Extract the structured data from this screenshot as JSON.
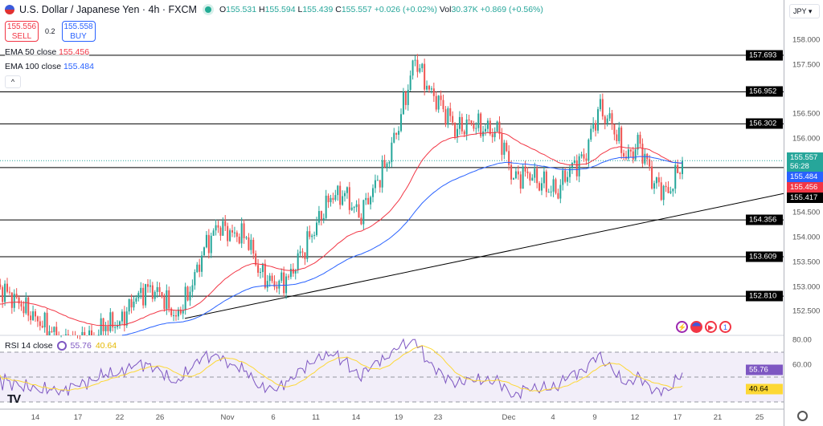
{
  "header": {
    "title": "U.S. Dollar / Japanese Yen · 4h · FXCM",
    "open": "155.531",
    "high": "155.594",
    "low": "155.439",
    "close": "155.557",
    "change": "+0.026 (+0.02%)",
    "volume": "30.37K",
    "vol_change": "+0.869 (+0.56%)",
    "o_label": "O",
    "h_label": "H",
    "l_label": "L",
    "c_label": "C",
    "vol_label": "Vol"
  },
  "trade": {
    "sell_price": "155.556",
    "sell_label": "SELL",
    "spread": "0.2",
    "buy_price": "155.558",
    "buy_label": "BUY"
  },
  "legend": {
    "ema50_label": "EMA 50 close",
    "ema50_value": "155.456",
    "ema100_label": "EMA 100 close",
    "ema100_value": "155.484",
    "rsi_label": "RSI 14 close",
    "rsi_value": "55.76",
    "rsi_ma_value": "40.64"
  },
  "currency": "JPY",
  "colors": {
    "up": "#26a69a",
    "down": "#ef5350",
    "ema50": "#f23645",
    "ema100": "#2962ff",
    "rsi": "#7e57c2",
    "rsi_ma": "#fdd835",
    "level": "#000000"
  },
  "chart_data": [
    {
      "type": "candlestick",
      "interval": "4h",
      "ylim": [
        152.15,
        158.8
      ],
      "y_ticks": [
        "158.000",
        "157.500",
        "156.500",
        "156.000",
        "154.500",
        "154.000",
        "153.500",
        "153.000",
        "152.500"
      ],
      "x_ticks": [
        "14",
        "17",
        "22",
        "26",
        "Nov",
        "6",
        "11",
        "14",
        "19",
        "23",
        "Dec",
        "4",
        "9",
        "12",
        "17",
        "21",
        "25"
      ],
      "daily_closes": [
        152.9,
        152.6,
        152.4,
        152.1,
        151.9,
        151.9,
        152.0,
        152.2,
        152.3,
        152.7,
        153.0,
        152.8,
        152.4,
        152.9,
        153.8,
        154.2,
        154.1,
        154.0,
        153.3,
        153.0,
        153.2,
        153.7,
        154.3,
        154.8,
        154.9,
        154.4,
        155.0,
        155.5,
        156.5,
        157.6,
        157.0,
        156.6,
        156.2,
        156.3,
        156.2,
        156.1,
        155.2,
        155.3,
        155.1,
        154.9,
        155.4,
        155.6,
        156.6,
        156.3,
        155.6,
        155.9,
        155.1,
        154.9,
        155.557
      ],
      "levels": [
        "157.693",
        "156.952",
        "156.302",
        "155.417",
        "154.356",
        "153.609",
        "152.810"
      ],
      "trendline": [
        152.36,
        154.89
      ],
      "last_price": "155.557",
      "countdown": "56:28",
      "series": [
        {
          "name": "EMA 50 close",
          "last": 155.456
        },
        {
          "name": "EMA 100 close",
          "last": 155.484
        }
      ]
    },
    {
      "type": "line",
      "title": "RSI 14 close",
      "ylim": [
        25,
        80
      ],
      "bands": [
        70,
        50,
        30
      ],
      "y_ticks": [
        "80.00",
        "60.00"
      ],
      "last_rsi": 55.76,
      "last_ma": 40.64
    }
  ]
}
